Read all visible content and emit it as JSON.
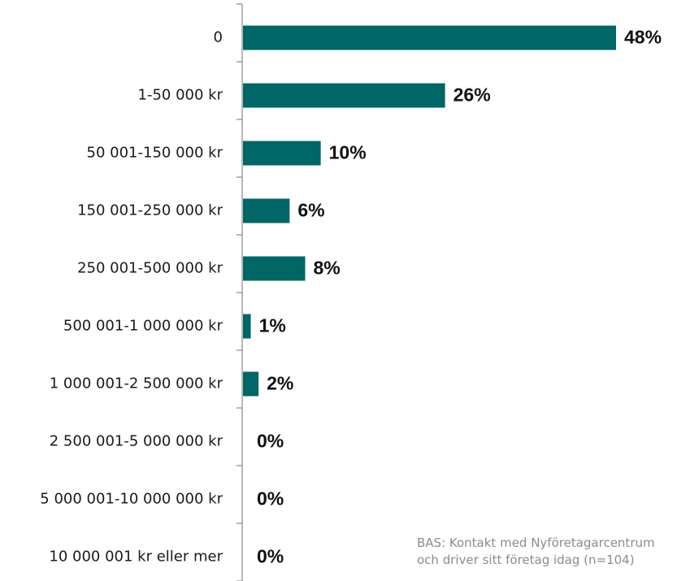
{
  "chart_data": {
    "type": "bar",
    "orientation": "horizontal",
    "categories": [
      "0",
      "1-50 000 kr",
      "50 001-150 000 kr",
      "150 001-250 000 kr",
      "250 001-500 000 kr",
      "500 001-1 000 000 kr",
      "1 000 001-2 500 000 kr",
      "2 500 001-5 000 000 kr",
      "5 000 001-10 000 000 kr",
      "10 000 001 kr eller mer"
    ],
    "values": [
      48,
      26,
      10,
      6,
      8,
      1,
      2,
      0,
      0,
      0
    ],
    "value_labels": [
      "48%",
      "26%",
      "10%",
      "6%",
      "8%",
      "1%",
      "2%",
      "0%",
      "0%",
      "0%"
    ],
    "xlim": [
      0,
      48
    ],
    "bar_color": "#006666",
    "grid": false,
    "legend": "none"
  },
  "footnote": {
    "line1": "BAS: Kontakt med Nyföretagarcentrum",
    "line2": "och driver sitt företag idag  (n=104)"
  }
}
